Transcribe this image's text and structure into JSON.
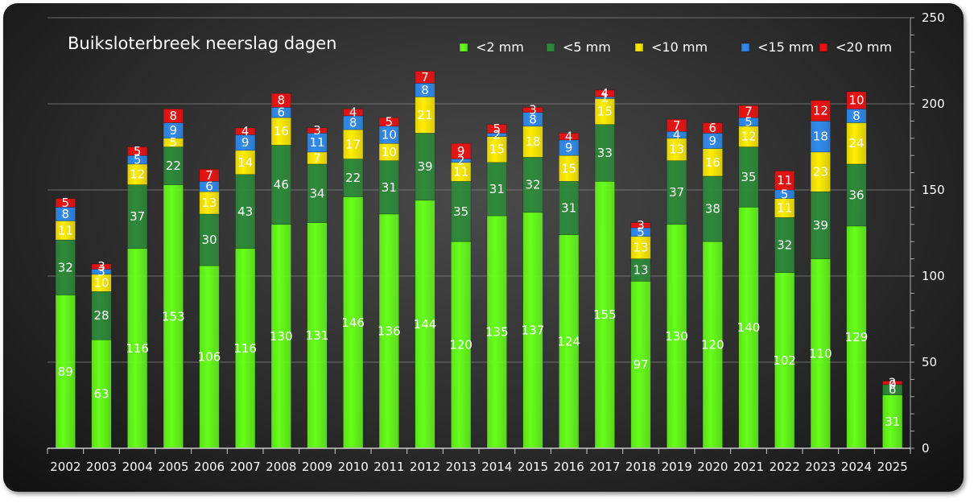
{
  "chart_data": {
    "type": "bar",
    "stacked": true,
    "title": "Buiksloterbreek neerslag dagen",
    "xlabel": "",
    "ylabel": "",
    "ylim": [
      0,
      250
    ],
    "yticks": [
      0,
      50,
      100,
      150,
      200,
      250
    ],
    "y_axis_side": "right",
    "grid": true,
    "legend_position": "top-right",
    "categories": [
      "2002",
      "2003",
      "2004",
      "2005",
      "2006",
      "2007",
      "2008",
      "2009",
      "2010",
      "2011",
      "2012",
      "2013",
      "2014",
      "2015",
      "2016",
      "2017",
      "2018",
      "2019",
      "2020",
      "2021",
      "2022",
      "2023",
      "2024",
      "2025"
    ],
    "series": [
      {
        "name": "<2 mm",
        "color": "#66ff1a",
        "values": [
          89,
          63,
          116,
          153,
          106,
          116,
          130,
          131,
          146,
          136,
          144,
          120,
          135,
          137,
          124,
          155,
          97,
          130,
          120,
          140,
          102,
          110,
          129,
          31
        ]
      },
      {
        "name": "<5 mm",
        "color": "#2e8b3a",
        "values": [
          32,
          28,
          37,
          22,
          30,
          43,
          46,
          34,
          22,
          31,
          39,
          35,
          31,
          32,
          31,
          33,
          13,
          37,
          38,
          35,
          32,
          39,
          36,
          6
        ]
      },
      {
        "name": "<10 mm",
        "color": "#ffee00",
        "values": [
          11,
          10,
          12,
          5,
          13,
          14,
          16,
          7,
          17,
          10,
          21,
          11,
          15,
          18,
          15,
          15,
          13,
          13,
          16,
          12,
          11,
          23,
          24,
          0
        ]
      },
      {
        "name": "<15 mm",
        "color": "#2f8cf0",
        "values": [
          8,
          3,
          5,
          9,
          6,
          9,
          6,
          11,
          8,
          10,
          8,
          2,
          2,
          8,
          9,
          1,
          5,
          4,
          9,
          5,
          5,
          18,
          8,
          0
        ]
      },
      {
        "name": "<20 mm",
        "color": "#ee1111",
        "values": [
          5,
          3,
          5,
          8,
          7,
          4,
          8,
          3,
          4,
          5,
          7,
          9,
          5,
          3,
          4,
          4,
          3,
          7,
          6,
          7,
          11,
          12,
          10,
          2
        ]
      }
    ]
  }
}
